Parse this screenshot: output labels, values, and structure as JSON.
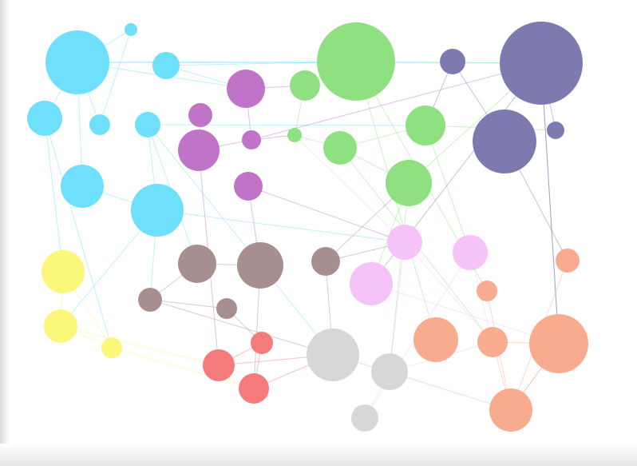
{
  "graph": {
    "groups": [
      {
        "id": "cyan",
        "color": "#6fe0fb"
      },
      {
        "id": "purple",
        "color": "#c074c8"
      },
      {
        "id": "green",
        "color": "#8ee081"
      },
      {
        "id": "navy",
        "color": "#7d7aaf"
      },
      {
        "id": "yellow",
        "color": "#fbf77a"
      },
      {
        "id": "brown",
        "color": "#a88f8f"
      },
      {
        "id": "pink",
        "color": "#f6c3f8"
      },
      {
        "id": "red",
        "color": "#f57b7b"
      },
      {
        "id": "gray",
        "color": "#d7d7d7"
      },
      {
        "id": "salmon",
        "color": "#f8ab8f"
      }
    ],
    "nodes": [
      {
        "id": "c1",
        "group": "cyan"
      },
      {
        "id": "c2",
        "group": "cyan"
      },
      {
        "id": "c3",
        "group": "cyan"
      },
      {
        "id": "c4",
        "group": "cyan"
      },
      {
        "id": "c5",
        "group": "cyan"
      },
      {
        "id": "c6",
        "group": "cyan"
      },
      {
        "id": "c7",
        "group": "cyan"
      },
      {
        "id": "c8",
        "group": "cyan"
      },
      {
        "id": "p1",
        "group": "purple"
      },
      {
        "id": "p2",
        "group": "purple"
      },
      {
        "id": "p3",
        "group": "purple"
      },
      {
        "id": "p4",
        "group": "purple"
      },
      {
        "id": "p5",
        "group": "purple"
      },
      {
        "id": "g1",
        "group": "green"
      },
      {
        "id": "g2",
        "group": "green"
      },
      {
        "id": "g3",
        "group": "green"
      },
      {
        "id": "g4",
        "group": "green"
      },
      {
        "id": "g5",
        "group": "green"
      },
      {
        "id": "g6",
        "group": "green"
      },
      {
        "id": "n1",
        "group": "navy"
      },
      {
        "id": "n2",
        "group": "navy"
      },
      {
        "id": "n3",
        "group": "navy"
      },
      {
        "id": "n4",
        "group": "navy"
      },
      {
        "id": "y1",
        "group": "yellow"
      },
      {
        "id": "y2",
        "group": "yellow"
      },
      {
        "id": "y3",
        "group": "yellow"
      },
      {
        "id": "b1",
        "group": "brown"
      },
      {
        "id": "b2",
        "group": "brown"
      },
      {
        "id": "b3",
        "group": "brown"
      },
      {
        "id": "b4",
        "group": "brown"
      },
      {
        "id": "b5",
        "group": "brown"
      },
      {
        "id": "k1",
        "group": "pink"
      },
      {
        "id": "k2",
        "group": "pink"
      },
      {
        "id": "k3",
        "group": "pink"
      },
      {
        "id": "r1",
        "group": "red"
      },
      {
        "id": "r2",
        "group": "red"
      },
      {
        "id": "r3",
        "group": "red"
      },
      {
        "id": "a1",
        "group": "gray"
      },
      {
        "id": "a2",
        "group": "gray"
      },
      {
        "id": "a3",
        "group": "gray"
      },
      {
        "id": "s1",
        "group": "salmon"
      },
      {
        "id": "s2",
        "group": "salmon"
      },
      {
        "id": "s3",
        "group": "salmon"
      },
      {
        "id": "s4",
        "group": "salmon"
      },
      {
        "id": "s5",
        "group": "salmon"
      },
      {
        "id": "s6",
        "group": "salmon"
      },
      {
        "id": "s7",
        "group": "salmon"
      }
    ],
    "edges": [
      [
        "c1",
        "c2"
      ],
      [
        "c1",
        "c4"
      ],
      [
        "c1",
        "c5"
      ],
      [
        "c1",
        "p1"
      ],
      [
        "c1",
        "g1"
      ],
      [
        "c1",
        "n2"
      ],
      [
        "c1",
        "c7"
      ],
      [
        "c3",
        "g1"
      ],
      [
        "c3",
        "p1"
      ],
      [
        "c2",
        "c5"
      ],
      [
        "c6",
        "c8"
      ],
      [
        "c6",
        "b1"
      ],
      [
        "c6",
        "a1"
      ],
      [
        "c6",
        "g3"
      ],
      [
        "c8",
        "b3"
      ],
      [
        "c8",
        "y2"
      ],
      [
        "c8",
        "k1"
      ],
      [
        "c7",
        "c8"
      ],
      [
        "c4",
        "y1"
      ],
      [
        "c4",
        "y3"
      ],
      [
        "p1",
        "p4"
      ],
      [
        "p1",
        "g2"
      ],
      [
        "p2",
        "p3"
      ],
      [
        "p3",
        "r1"
      ],
      [
        "p3",
        "p4"
      ],
      [
        "p5",
        "b2"
      ],
      [
        "p5",
        "k1"
      ],
      [
        "p4",
        "n2"
      ],
      [
        "p4",
        "g4"
      ],
      [
        "g1",
        "n2"
      ],
      [
        "g1",
        "s3"
      ],
      [
        "g2",
        "g4"
      ],
      [
        "g3",
        "g5"
      ],
      [
        "g5",
        "g6"
      ],
      [
        "g6",
        "n2"
      ],
      [
        "g4",
        "g5"
      ],
      [
        "g6",
        "k3"
      ],
      [
        "g6",
        "a2"
      ],
      [
        "g3",
        "k2"
      ],
      [
        "g1",
        "s2"
      ],
      [
        "g5",
        "s4"
      ],
      [
        "g3",
        "n4"
      ],
      [
        "n1",
        "n3"
      ],
      [
        "n2",
        "n4"
      ],
      [
        "n2",
        "k3"
      ],
      [
        "n2",
        "s7"
      ],
      [
        "n3",
        "s1"
      ],
      [
        "n2",
        "s5"
      ],
      [
        "n1",
        "g3"
      ],
      [
        "y1",
        "y2"
      ],
      [
        "y2",
        "y3"
      ],
      [
        "y2",
        "r1"
      ],
      [
        "y3",
        "r3"
      ],
      [
        "y1",
        "y3"
      ],
      [
        "b1",
        "b3"
      ],
      [
        "b2",
        "b1"
      ],
      [
        "b2",
        "r3"
      ],
      [
        "b4",
        "b3"
      ],
      [
        "b4",
        "r2"
      ],
      [
        "b5",
        "g6"
      ],
      [
        "b5",
        "a1"
      ],
      [
        "b3",
        "a1"
      ],
      [
        "b5",
        "k1"
      ],
      [
        "k1",
        "s4"
      ],
      [
        "k1",
        "a2"
      ],
      [
        "k2",
        "s4"
      ],
      [
        "k3",
        "s5"
      ],
      [
        "k2",
        "a3"
      ],
      [
        "k1",
        "g4"
      ],
      [
        "r1",
        "r2"
      ],
      [
        "r2",
        "r3"
      ],
      [
        "r3",
        "a1"
      ],
      [
        "r1",
        "a1"
      ],
      [
        "a1",
        "a2"
      ],
      [
        "a2",
        "a3"
      ],
      [
        "a2",
        "s4"
      ],
      [
        "a2",
        "s6"
      ],
      [
        "a1",
        "s6"
      ],
      [
        "s4",
        "s5"
      ],
      [
        "s5",
        "s6"
      ],
      [
        "s6",
        "s7"
      ],
      [
        "s5",
        "s7"
      ],
      [
        "s4",
        "s6"
      ],
      [
        "s2",
        "s6"
      ],
      [
        "s1",
        "s6"
      ]
    ]
  }
}
